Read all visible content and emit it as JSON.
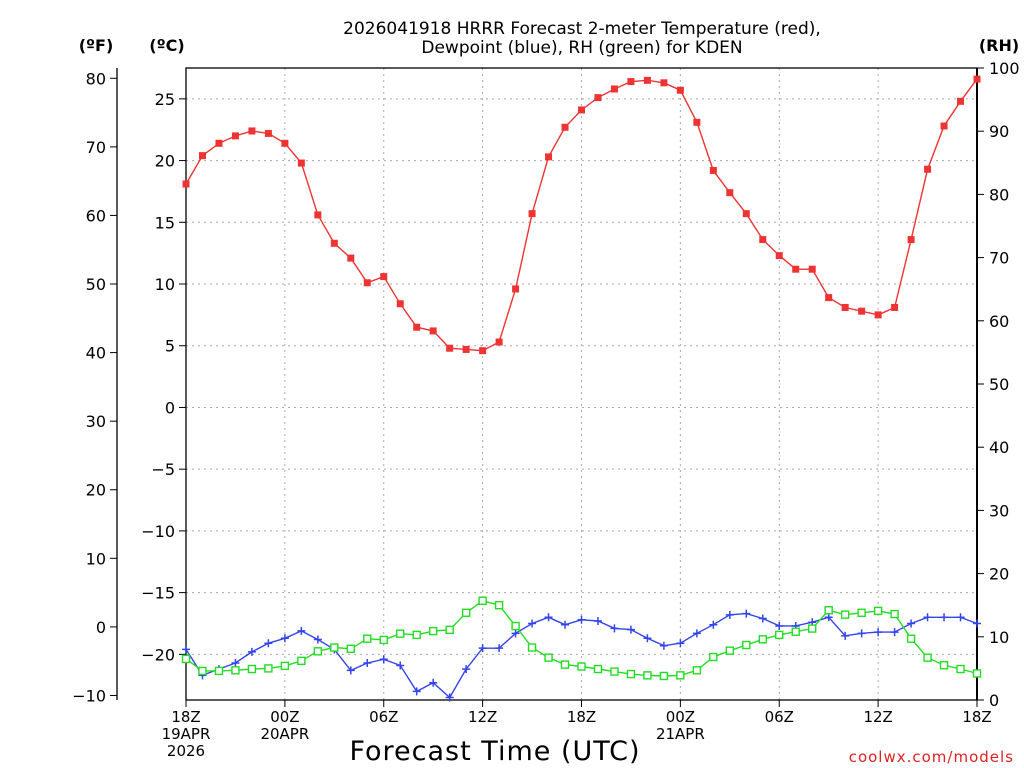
{
  "chart_data": {
    "type": "line",
    "title_line1": "2026041918 HRRR Forecast 2-meter Temperature (red),",
    "title_line2": "Dewpoint (blue), RH (green) for KDEN",
    "xlabel": "Forecast Time (UTC)",
    "unit_f": "(ºF)",
    "unit_c": "(ºC)",
    "unit_rh": "(RH)",
    "credit": "coolwx.com/models",
    "hours": [
      0,
      1,
      2,
      3,
      4,
      5,
      6,
      7,
      8,
      9,
      10,
      11,
      12,
      13,
      14,
      15,
      16,
      17,
      18,
      19,
      20,
      21,
      22,
      23,
      24,
      25,
      26,
      27,
      28,
      29,
      30,
      31,
      32,
      33,
      34,
      35,
      36,
      37,
      38,
      39,
      40,
      41,
      42,
      43,
      44,
      45,
      46,
      47,
      48
    ],
    "x_ticks": [
      {
        "hour": 0,
        "lines": [
          "18Z",
          "19APR",
          "2026"
        ]
      },
      {
        "hour": 6,
        "lines": [
          "00Z",
          "20APR"
        ]
      },
      {
        "hour": 12,
        "lines": [
          "06Z"
        ]
      },
      {
        "hour": 18,
        "lines": [
          "12Z"
        ]
      },
      {
        "hour": 24,
        "lines": [
          "18Z"
        ]
      },
      {
        "hour": 30,
        "lines": [
          "00Z",
          "21APR"
        ]
      },
      {
        "hour": 36,
        "lines": [
          "06Z"
        ]
      },
      {
        "hour": 42,
        "lines": [
          "12Z"
        ]
      },
      {
        "hour": 48,
        "lines": [
          "18Z"
        ]
      }
    ],
    "ylim_c": [
      -23.7,
      27.5
    ],
    "ylim_rh": [
      0,
      100
    ],
    "yticks_c": [
      25,
      20,
      15,
      10,
      5,
      0,
      -5,
      -10,
      -15,
      -20
    ],
    "yticks_f": [
      80,
      70,
      60,
      50,
      40,
      30,
      20,
      10,
      0,
      -10
    ],
    "yticks_rh": [
      100,
      90,
      80,
      70,
      60,
      50,
      40,
      30,
      20,
      10,
      0
    ],
    "grid": true,
    "series": [
      {
        "name": "Temperature",
        "unit": "C",
        "color": "#ee3333",
        "marker": "filled-square",
        "values": [
          18.1,
          20.4,
          21.4,
          22.0,
          22.4,
          22.2,
          21.4,
          19.8,
          15.6,
          13.3,
          12.1,
          10.1,
          10.6,
          8.4,
          6.5,
          6.2,
          4.8,
          4.7,
          4.6,
          5.3,
          9.6,
          15.7,
          20.3,
          22.7,
          24.1,
          25.1,
          25.8,
          26.4,
          26.5,
          26.3,
          25.7,
          23.1,
          19.2,
          17.4,
          15.7,
          13.6,
          12.3,
          11.2,
          11.2,
          8.9,
          8.1,
          7.8,
          7.5,
          8.1,
          13.6,
          19.3,
          22.8,
          24.8,
          26.6
        ]
      },
      {
        "name": "Dewpoint",
        "unit": "C",
        "color": "#3344ee",
        "marker": "plus",
        "values": [
          -19.6,
          -21.7,
          -21.2,
          -20.7,
          -19.8,
          -19.1,
          -18.7,
          -18.1,
          -18.8,
          -19.6,
          -21.3,
          -20.7,
          -20.4,
          -20.9,
          -23.0,
          -22.3,
          -23.5,
          -21.2,
          -19.5,
          -19.5,
          -18.3,
          -17.5,
          -17.0,
          -17.6,
          -17.2,
          -17.3,
          -17.9,
          -18.0,
          -18.7,
          -19.3,
          -19.1,
          -18.3,
          -17.6,
          -16.8,
          -16.7,
          -17.1,
          -17.7,
          -17.7,
          -17.4,
          -17.0,
          -18.5,
          -18.3,
          -18.2,
          -18.2,
          -17.5,
          -17.0,
          -17.0,
          -17.0,
          -17.5
        ]
      },
      {
        "name": "RH",
        "unit": "%",
        "color": "#22dd22",
        "marker": "open-square",
        "values": [
          6.5,
          4.6,
          4.6,
          4.7,
          4.9,
          5.0,
          5.4,
          6.2,
          7.7,
          8.3,
          8.1,
          9.7,
          9.5,
          10.5,
          10.3,
          10.9,
          11.1,
          13.8,
          15.7,
          15.0,
          11.7,
          8.3,
          6.7,
          5.6,
          5.3,
          4.9,
          4.5,
          4.1,
          3.9,
          3.8,
          3.9,
          4.7,
          6.8,
          7.8,
          8.7,
          9.6,
          10.3,
          10.8,
          11.3,
          14.2,
          13.5,
          13.8,
          14.1,
          13.6,
          9.7,
          6.7,
          5.5,
          4.9,
          4.2
        ]
      }
    ]
  }
}
